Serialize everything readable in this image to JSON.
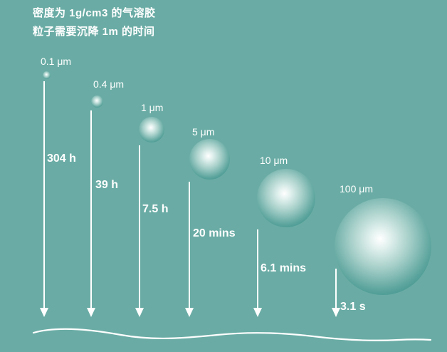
{
  "title": {
    "line1": "密度为 1g/cm3 的气溶胶",
    "line2": "粒子需要沉降 1m 的时间"
  },
  "particles": [
    {
      "size": "0.1 μm",
      "time": "304 h"
    },
    {
      "size": "0.4 μm",
      "time": "39 h"
    },
    {
      "size": "1 μm",
      "time": "7.5 h"
    },
    {
      "size": "5 μm",
      "time": "20 mins"
    },
    {
      "size": "10 μm",
      "time": "6.1 mins"
    },
    {
      "size": "100 μm",
      "time": "3.1 s"
    }
  ],
  "colors": {
    "background": "#6aaca5",
    "sphere_edge": "#2e8a84",
    "text": "#ffffff"
  }
}
